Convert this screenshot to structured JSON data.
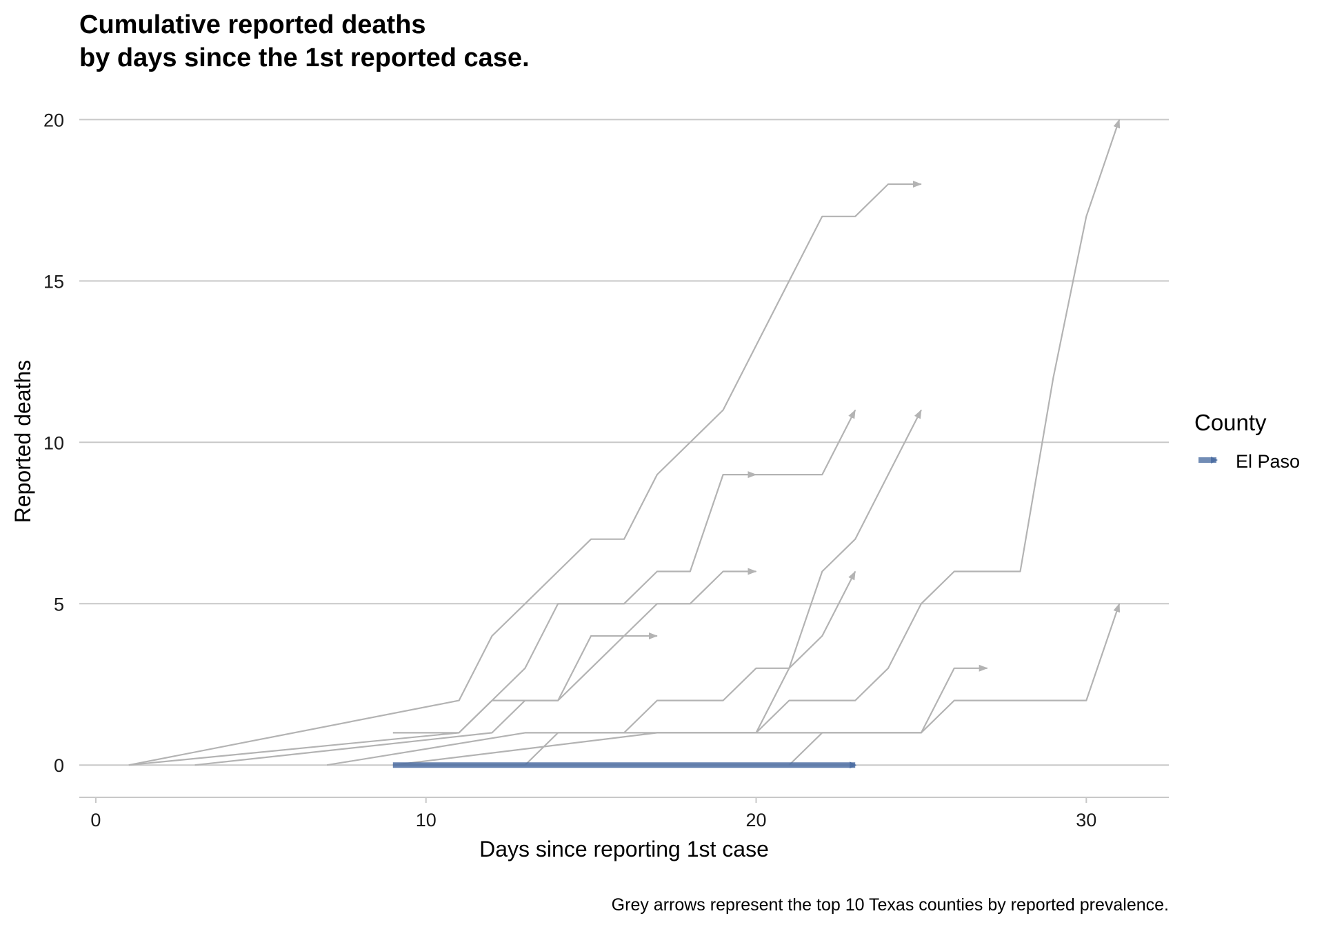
{
  "chart_data": {
    "type": "line",
    "title_lines": [
      "Cumulative reported deaths",
      "by days since the 1st reported case."
    ],
    "xlabel": "Days since reporting 1st case",
    "ylabel": "Reported deaths",
    "caption": "Grey arrows represent the top 10 Texas counties by reported prevalence.",
    "xlim": [
      -0.5,
      32.5
    ],
    "ylim": [
      -1,
      20.5
    ],
    "x_ticks": [
      0,
      10,
      20,
      30
    ],
    "y_ticks": [
      0,
      5,
      10,
      15,
      20
    ],
    "grid": "horizontal major lines",
    "legend": {
      "title": "County",
      "placement": "right",
      "entries": [
        {
          "label": "El Paso",
          "color": "#4e6fa3"
        }
      ]
    },
    "colors": {
      "highlight": "#4e6fa3",
      "background_series": "#b3b3b3",
      "grid": "#c8c8c8"
    },
    "series": [
      {
        "highlight": true,
        "name": "El Paso",
        "x": [
          9,
          23
        ],
        "y": [
          0,
          0
        ]
      },
      {
        "highlight": false,
        "x": [
          1,
          11,
          12,
          13,
          14,
          15,
          16,
          17,
          18,
          19,
          20,
          21,
          22,
          23,
          24,
          25
        ],
        "y": [
          0,
          2,
          4,
          5,
          6,
          7,
          7,
          9,
          10,
          11,
          13,
          15,
          17,
          17,
          18,
          18
        ]
      },
      {
        "highlight": false,
        "x": [
          9,
          10,
          11,
          12,
          13,
          14,
          15,
          16,
          17,
          18,
          19,
          20
        ],
        "y": [
          1,
          1,
          1,
          2,
          3,
          5,
          5,
          5,
          6,
          6,
          9,
          9
        ]
      },
      {
        "highlight": false,
        "x": [
          20,
          21,
          22,
          23
        ],
        "y": [
          9,
          9,
          9,
          11
        ]
      },
      {
        "highlight": false,
        "x": [
          1,
          11,
          12,
          13,
          14,
          15,
          16,
          17,
          18,
          19,
          20
        ],
        "y": [
          0,
          1,
          2,
          2,
          2,
          3,
          4,
          5,
          5,
          6,
          6
        ]
      },
      {
        "highlight": false,
        "x": [
          3,
          12,
          13,
          14,
          15,
          16,
          17
        ],
        "y": [
          0,
          1,
          2,
          2,
          4,
          4,
          4
        ]
      },
      {
        "highlight": false,
        "x": [
          7,
          13,
          14,
          15,
          16,
          17,
          18,
          19,
          20,
          21,
          22,
          23
        ],
        "y": [
          0,
          1,
          1,
          1,
          1,
          2,
          2,
          2,
          3,
          3,
          4,
          6
        ]
      },
      {
        "highlight": false,
        "x": [
          9,
          13,
          14,
          15,
          16,
          17,
          18,
          19,
          20,
          21,
          22,
          23,
          24,
          25
        ],
        "y": [
          0,
          0,
          1,
          1,
          1,
          1,
          1,
          1,
          1,
          3,
          6,
          7,
          9,
          11
        ]
      },
      {
        "highlight": false,
        "x": [
          9,
          17,
          18,
          19,
          20,
          21,
          22,
          23,
          24,
          25,
          26,
          27,
          28,
          29,
          30,
          31
        ],
        "y": [
          0,
          1,
          1,
          1,
          1,
          2,
          2,
          2,
          3,
          5,
          6,
          6,
          6,
          12,
          17,
          20
        ]
      },
      {
        "highlight": false,
        "x": [
          21,
          22,
          23,
          24,
          25,
          26,
          27
        ],
        "y": [
          0,
          1,
          1,
          1,
          1,
          3,
          3
        ]
      },
      {
        "highlight": false,
        "x": [
          17,
          25,
          26,
          27,
          28,
          29,
          30,
          31
        ],
        "y": [
          1,
          1,
          2,
          2,
          2,
          2,
          2,
          5
        ]
      }
    ]
  }
}
